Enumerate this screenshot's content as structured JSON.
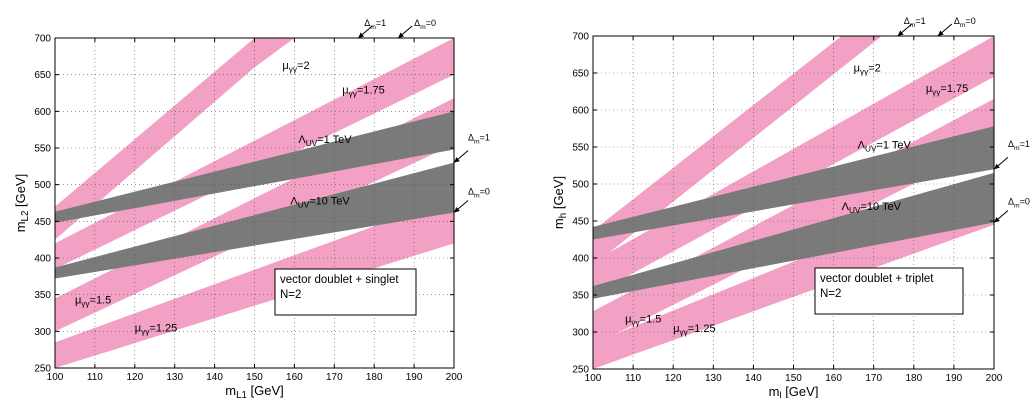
{
  "chart_data": [
    {
      "type": "area",
      "xlabel": "m",
      "xlabel_sub": "L1",
      "xlabel_unit": " [GeV]",
      "ylabel": "m",
      "ylabel_sub": "L2",
      "ylabel_unit": " [GeV]",
      "xlim": [
        100,
        200
      ],
      "ylim": [
        250,
        700
      ],
      "xticks": [
        100,
        110,
        120,
        130,
        140,
        150,
        160,
        170,
        180,
        190,
        200
      ],
      "yticks": [
        250,
        300,
        350,
        400,
        450,
        500,
        550,
        600,
        650,
        700
      ],
      "grid": true,
      "legend_box": {
        "lines": [
          "vector doublet + singlet",
          "N=2"
        ],
        "position": "bottom-right"
      },
      "bands": [
        {
          "color": "#f2a0c4",
          "lo": [
            [
              100,
              425
            ],
            [
              150,
              660
            ],
            [
              160,
              700
            ]
          ],
          "hi": [
            [
              100,
              470
            ],
            [
              150,
              700
            ],
            [
              151,
              700
            ]
          ],
          "label": [
            "μ",
            "γγ",
            "=2"
          ]
        },
        {
          "color": "#f2a0c4",
          "lo": [
            [
              100,
              385
            ],
            [
              200,
              650
            ]
          ],
          "hi": [
            [
              100,
              420
            ],
            [
              200,
              700
            ]
          ],
          "label": [
            "μ",
            "γγ",
            "=1.75"
          ]
        },
        {
          "color": "#f2a0c4",
          "lo": [
            [
              100,
              300
            ],
            [
              200,
              555
            ]
          ],
          "hi": [
            [
              100,
              345
            ],
            [
              200,
              618
            ]
          ],
          "label": [
            "μ",
            "γγ",
            "=1.5"
          ]
        },
        {
          "color": "#f2a0c4",
          "lo": [
            [
              100,
              250
            ],
            [
              200,
              420
            ]
          ],
          "hi": [
            [
              100,
              285
            ],
            [
              200,
              483
            ]
          ],
          "label": [
            "μ",
            "γγ",
            "=1.25"
          ]
        },
        {
          "color": "#7a7a7a",
          "lo": [
            [
              100,
              448
            ],
            [
              200,
              548
            ]
          ],
          "hi": [
            [
              100,
              463
            ],
            [
              200,
              600
            ]
          ],
          "label": [
            "Λ",
            "UV",
            "=1 TeV"
          ]
        },
        {
          "color": "#7a7a7a",
          "lo": [
            [
              100,
              372
            ],
            [
              200,
              462
            ]
          ],
          "hi": [
            [
              100,
              387
            ],
            [
              200,
              530
            ]
          ],
          "label": [
            "Λ",
            "UV",
            "=10 TeV"
          ]
        }
      ],
      "arrows": [
        {
          "text": [
            "Δ",
            "m",
            "=1"
          ],
          "target": [
            176,
            700
          ]
        },
        {
          "text": [
            "Δ",
            "m",
            "=0"
          ],
          "target": [
            186,
            700
          ]
        },
        {
          "text": [
            "Δ",
            "m",
            "=1"
          ],
          "target": [
            200,
            530
          ]
        },
        {
          "text": [
            "Δ",
            "m",
            "=0"
          ],
          "target": [
            200,
            462
          ]
        }
      ]
    },
    {
      "type": "area",
      "xlabel": "m",
      "xlabel_sub": "l",
      "xlabel_unit": " [GeV]",
      "ylabel": "m",
      "ylabel_sub": "h",
      "ylabel_unit": " [GeV]",
      "xlim": [
        100,
        200
      ],
      "ylim": [
        250,
        700
      ],
      "xticks": [
        100,
        110,
        120,
        130,
        140,
        150,
        160,
        170,
        180,
        190,
        200
      ],
      "yticks": [
        250,
        300,
        350,
        400,
        450,
        500,
        550,
        600,
        650,
        700
      ],
      "grid": true,
      "legend_box": {
        "lines": [
          "vector doublet + triplet",
          "N=2"
        ],
        "position": "bottom-right"
      },
      "bands": [
        {
          "color": "#f2a0c4",
          "lo": [
            [
              100,
              390
            ],
            [
              172,
              700
            ],
            [
              177,
              700
            ]
          ],
          "hi": [
            [
              100,
              437
            ],
            [
              162,
              700
            ],
            [
              163,
              700
            ]
          ],
          "label": [
            "μ",
            "γγ",
            "=2"
          ]
        },
        {
          "color": "#f2a0c4",
          "lo": [
            [
              100,
              350
            ],
            [
              200,
              645
            ]
          ],
          "hi": [
            [
              100,
              395
            ],
            [
              200,
              700
            ]
          ],
          "label": [
            "μ",
            "γγ",
            "=1.75"
          ]
        },
        {
          "color": "#f2a0c4",
          "lo": [
            [
              100,
              282
            ],
            [
              200,
              555
            ]
          ],
          "hi": [
            [
              100,
              328
            ],
            [
              200,
              615
            ]
          ],
          "label": [
            "μ",
            "γγ",
            "=1.5"
          ]
        },
        {
          "color": "#f2a0c4",
          "lo": [
            [
              100,
              250
            ],
            [
              200,
              445
            ]
          ],
          "hi": [
            [
              100,
              285
            ],
            [
              200,
              505
            ]
          ],
          "label": [
            "μ",
            "γγ",
            "=1.25"
          ]
        },
        {
          "color": "#7a7a7a",
          "lo": [
            [
              100,
              425
            ],
            [
              200,
              520
            ]
          ],
          "hi": [
            [
              100,
              442
            ],
            [
              200,
              578
            ]
          ],
          "label": [
            "Λ",
            "UV",
            "=1 TeV"
          ]
        },
        {
          "color": "#7a7a7a",
          "lo": [
            [
              100,
              345
            ],
            [
              200,
              448
            ]
          ],
          "hi": [
            [
              100,
              362
            ],
            [
              200,
              515
            ]
          ],
          "label": [
            "Λ",
            "UV",
            "=10 TeV"
          ]
        }
      ],
      "arrows": [
        {
          "text": [
            "Δ",
            "m",
            "=1"
          ],
          "target": [
            176,
            700
          ]
        },
        {
          "text": [
            "Δ",
            "m",
            "=0"
          ],
          "target": [
            186,
            700
          ]
        },
        {
          "text": [
            "Δ",
            "m",
            "=1"
          ],
          "target": [
            200,
            520
          ]
        },
        {
          "text": [
            "Δ",
            "m",
            "=0"
          ],
          "target": [
            200,
            448
          ]
        }
      ]
    }
  ]
}
